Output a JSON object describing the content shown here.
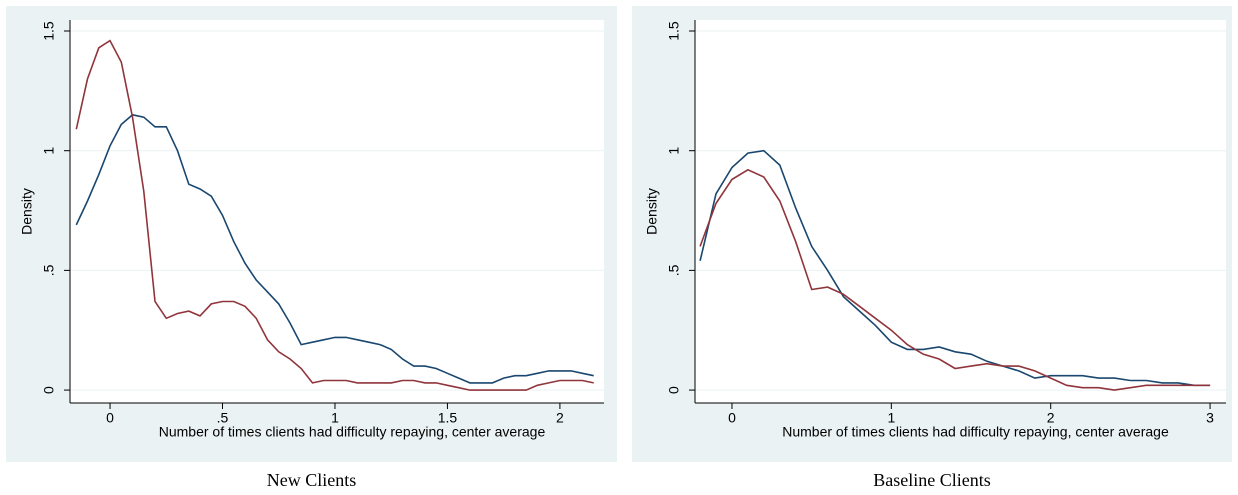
{
  "chart_data": [
    {
      "type": "line",
      "caption": "New Clients",
      "xlabel": "Number of times clients had difficulty repaying, center average",
      "ylabel": "Density",
      "x": [
        -0.15,
        -0.1,
        -0.05,
        0,
        0.05,
        0.1,
        0.15,
        0.2,
        0.25,
        0.3,
        0.35,
        0.4,
        0.45,
        0.5,
        0.55,
        0.6,
        0.65,
        0.7,
        0.75,
        0.8,
        0.85,
        0.9,
        0.95,
        1.0,
        1.05,
        1.1,
        1.15,
        1.2,
        1.25,
        1.3,
        1.35,
        1.4,
        1.45,
        1.5,
        1.55,
        1.6,
        1.65,
        1.7,
        1.75,
        1.8,
        1.85,
        1.9,
        1.95,
        2.0,
        2.05,
        2.1,
        2.15
      ],
      "series": [
        {
          "color": "#1a476f",
          "values": [
            0.69,
            0.79,
            0.9,
            1.02,
            1.11,
            1.15,
            1.14,
            1.1,
            1.1,
            1.0,
            0.86,
            0.84,
            0.81,
            0.73,
            0.62,
            0.53,
            0.46,
            0.41,
            0.36,
            0.28,
            0.19,
            0.2,
            0.21,
            0.22,
            0.22,
            0.21,
            0.2,
            0.19,
            0.17,
            0.13,
            0.1,
            0.1,
            0.09,
            0.07,
            0.05,
            0.03,
            0.03,
            0.03,
            0.05,
            0.06,
            0.06,
            0.07,
            0.08,
            0.08,
            0.08,
            0.07,
            0.06
          ]
        },
        {
          "color": "#90353b",
          "values": [
            1.09,
            1.3,
            1.43,
            1.46,
            1.37,
            1.14,
            0.83,
            0.37,
            0.3,
            0.32,
            0.33,
            0.31,
            0.36,
            0.37,
            0.37,
            0.35,
            0.3,
            0.21,
            0.16,
            0.13,
            0.09,
            0.03,
            0.04,
            0.04,
            0.04,
            0.03,
            0.03,
            0.03,
            0.03,
            0.04,
            0.04,
            0.03,
            0.03,
            0.02,
            0.01,
            0,
            0,
            0,
            0,
            0,
            0,
            0.02,
            0.03,
            0.04,
            0.04,
            0.04,
            0.03
          ]
        }
      ],
      "xlim": [
        -0.178,
        2.196
      ],
      "xticks": [
        0,
        {
          "value": 0.5,
          "label": ".5"
        },
        1,
        1.5,
        2
      ],
      "ylim": [
        -0.054,
        1.546
      ],
      "yticks": [
        0,
        {
          "value": 0.5,
          "label": ".5"
        },
        1,
        1.5
      ],
      "grid": true
    },
    {
      "type": "line",
      "caption": "Baseline Clients",
      "xlabel": "Number of times clients had difficulty repaying, center average",
      "ylabel": "Density",
      "x": [
        -0.2,
        -0.1,
        0,
        0.1,
        0.2,
        0.3,
        0.4,
        0.5,
        0.6,
        0.7,
        0.8,
        0.9,
        1.0,
        1.1,
        1.2,
        1.3,
        1.4,
        1.5,
        1.6,
        1.7,
        1.8,
        1.9,
        2.0,
        2.1,
        2.2,
        2.3,
        2.4,
        2.5,
        2.6,
        2.7,
        2.8,
        2.9,
        3.0
      ],
      "series": [
        {
          "color": "#1a476f",
          "values": [
            0.54,
            0.82,
            0.93,
            0.99,
            1.0,
            0.94,
            0.76,
            0.6,
            0.5,
            0.39,
            0.33,
            0.27,
            0.2,
            0.17,
            0.17,
            0.18,
            0.16,
            0.15,
            0.12,
            0.1,
            0.08,
            0.05,
            0.06,
            0.06,
            0.06,
            0.05,
            0.05,
            0.04,
            0.04,
            0.03,
            0.03,
            0.02,
            0.02
          ]
        },
        {
          "color": "#90353b",
          "values": [
            0.6,
            0.78,
            0.88,
            0.92,
            0.89,
            0.79,
            0.62,
            0.42,
            0.43,
            0.4,
            0.35,
            0.3,
            0.25,
            0.19,
            0.15,
            0.13,
            0.09,
            0.1,
            0.11,
            0.1,
            0.1,
            0.08,
            0.05,
            0.02,
            0.01,
            0.01,
            0,
            0.01,
            0.02,
            0.02,
            0.02,
            0.02,
            0.02
          ]
        }
      ],
      "xlim": [
        -0.232,
        3.1
      ],
      "xticks": [
        0,
        1,
        2,
        3
      ],
      "ylim": [
        -0.054,
        1.546
      ],
      "yticks": [
        0,
        {
          "value": 0.5,
          "label": ".5"
        },
        1,
        1.5
      ],
      "grid": true
    }
  ]
}
